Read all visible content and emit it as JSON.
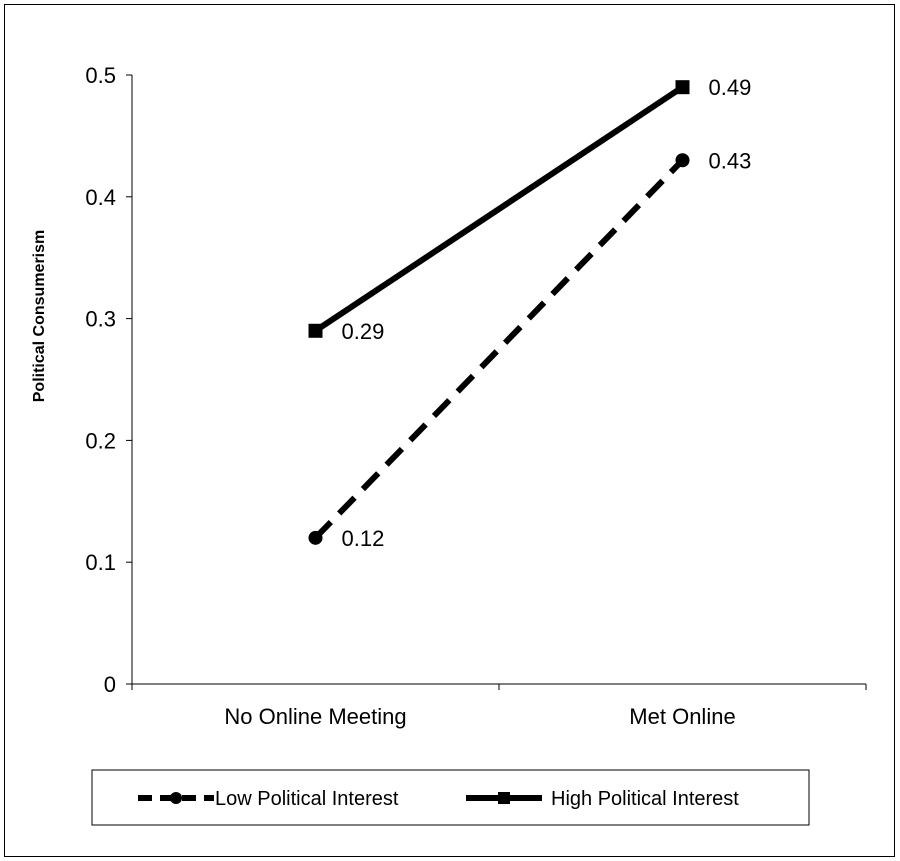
{
  "chart_data": {
    "type": "line",
    "title": "",
    "xlabel": "",
    "ylabel": "Political Consumerism",
    "categories": [
      "No Online Meeting",
      "Met Online"
    ],
    "ylim": [
      0,
      0.5
    ],
    "yticks": [
      "0",
      "0.1",
      "0.2",
      "0.3",
      "0.4",
      "0.5"
    ],
    "grid": false,
    "legend_position": "bottom",
    "series": [
      {
        "name": "Low Political Interest",
        "values": [
          0.12,
          0.43
        ],
        "labels": [
          "0.12",
          "0.43"
        ],
        "line_style": "dashed",
        "marker": "circle",
        "color": "#000000"
      },
      {
        "name": "High Political Interest",
        "values": [
          0.29,
          0.49
        ],
        "labels": [
          "0.29",
          "0.49"
        ],
        "line_style": "solid",
        "marker": "square",
        "color": "#000000"
      }
    ]
  }
}
